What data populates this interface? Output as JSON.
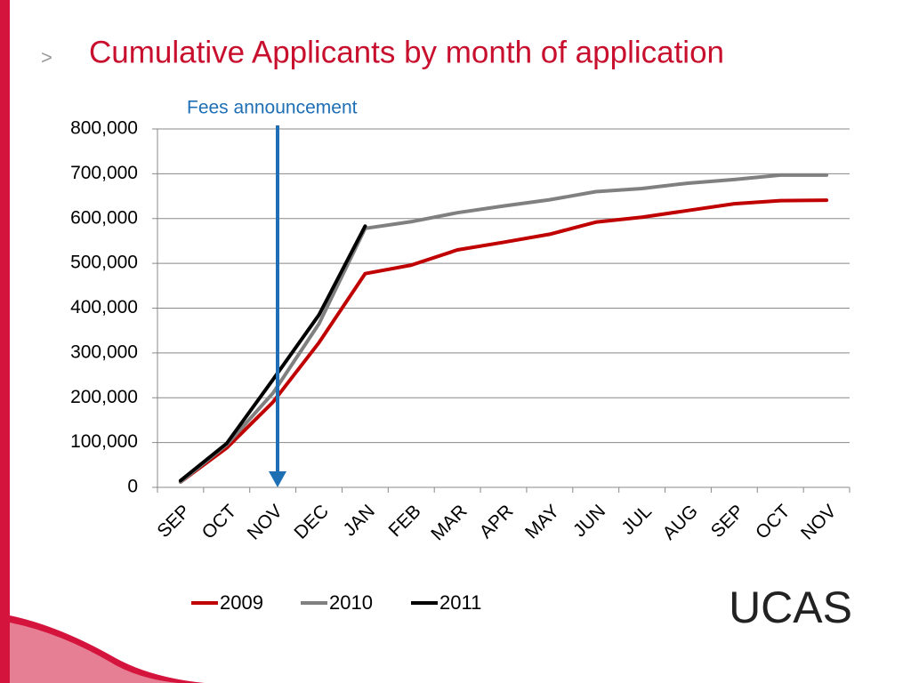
{
  "bullet": ">",
  "logo": "UCAS",
  "chart_data": {
    "type": "line",
    "title": "Cumulative Applicants by month of application",
    "annotation": "Fees announcement",
    "categories": [
      "SEP",
      "OCT",
      "NOV",
      "DEC",
      "JAN",
      "FEB",
      "MAR",
      "APR",
      "MAY",
      "JUN",
      "JUL",
      "AUG",
      "SEP",
      "OCT",
      "NOV"
    ],
    "series": [
      {
        "name": "2009",
        "color": "#c00000",
        "values": [
          12000,
          88000,
          190000,
          323000,
          477000,
          496000,
          530000,
          547000,
          565000,
          592000,
          603000,
          618000,
          633000,
          640000,
          641000
        ]
      },
      {
        "name": "2010",
        "color": "#808080",
        "values": [
          12000,
          95000,
          210000,
          365000,
          578000,
          593000,
          613000,
          628000,
          642000,
          660000,
          667000,
          679000,
          687000,
          697000,
          697000
        ]
      },
      {
        "name": "2011",
        "color": "#000000",
        "values": [
          15000,
          98000,
          240000,
          385000,
          583000,
          null,
          null,
          null,
          null,
          null,
          null,
          null,
          null,
          null,
          null
        ]
      }
    ],
    "ylim": [
      0,
      800000
    ],
    "yticks": [
      0,
      {
        "value": 100000,
        "label": "100,000"
      },
      {
        "value": 200000,
        "label": "200,000"
      },
      {
        "value": 300000,
        "label": "300,000"
      },
      {
        "value": 400000,
        "label": "400,000"
      },
      {
        "value": 500000,
        "label": "500,000"
      },
      {
        "value": 600000,
        "label": "600,000"
      },
      {
        "value": 700000,
        "label": "700,000"
      },
      {
        "value": 800000,
        "label": "800,000"
      }
    ],
    "grid": true,
    "legend": "bottom"
  }
}
